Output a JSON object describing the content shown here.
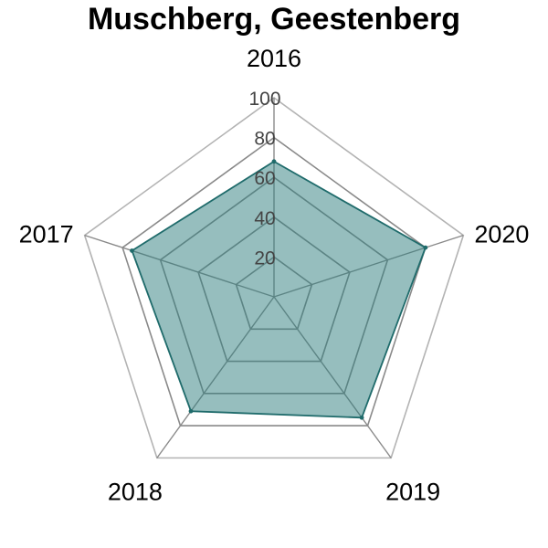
{
  "chart_data": {
    "type": "radar",
    "title": "Muschberg, Geestenberg",
    "axes": [
      "2016",
      "2017",
      "2018",
      "2019",
      "2020"
    ],
    "series": [
      {
        "values": [
          68,
          75,
          71,
          75,
          80
        ]
      }
    ],
    "range": [
      0,
      100
    ],
    "ticks": [
      20,
      40,
      60,
      80,
      100
    ],
    "tick_labels": [
      "20",
      "40",
      "60",
      "80",
      "100"
    ],
    "grid": true,
    "colors": {
      "fill": "#2e7d7d",
      "stroke": "#1f6b6b",
      "grid_inner": "#8a8a8a",
      "grid_outer": "#b3b3b3"
    }
  }
}
